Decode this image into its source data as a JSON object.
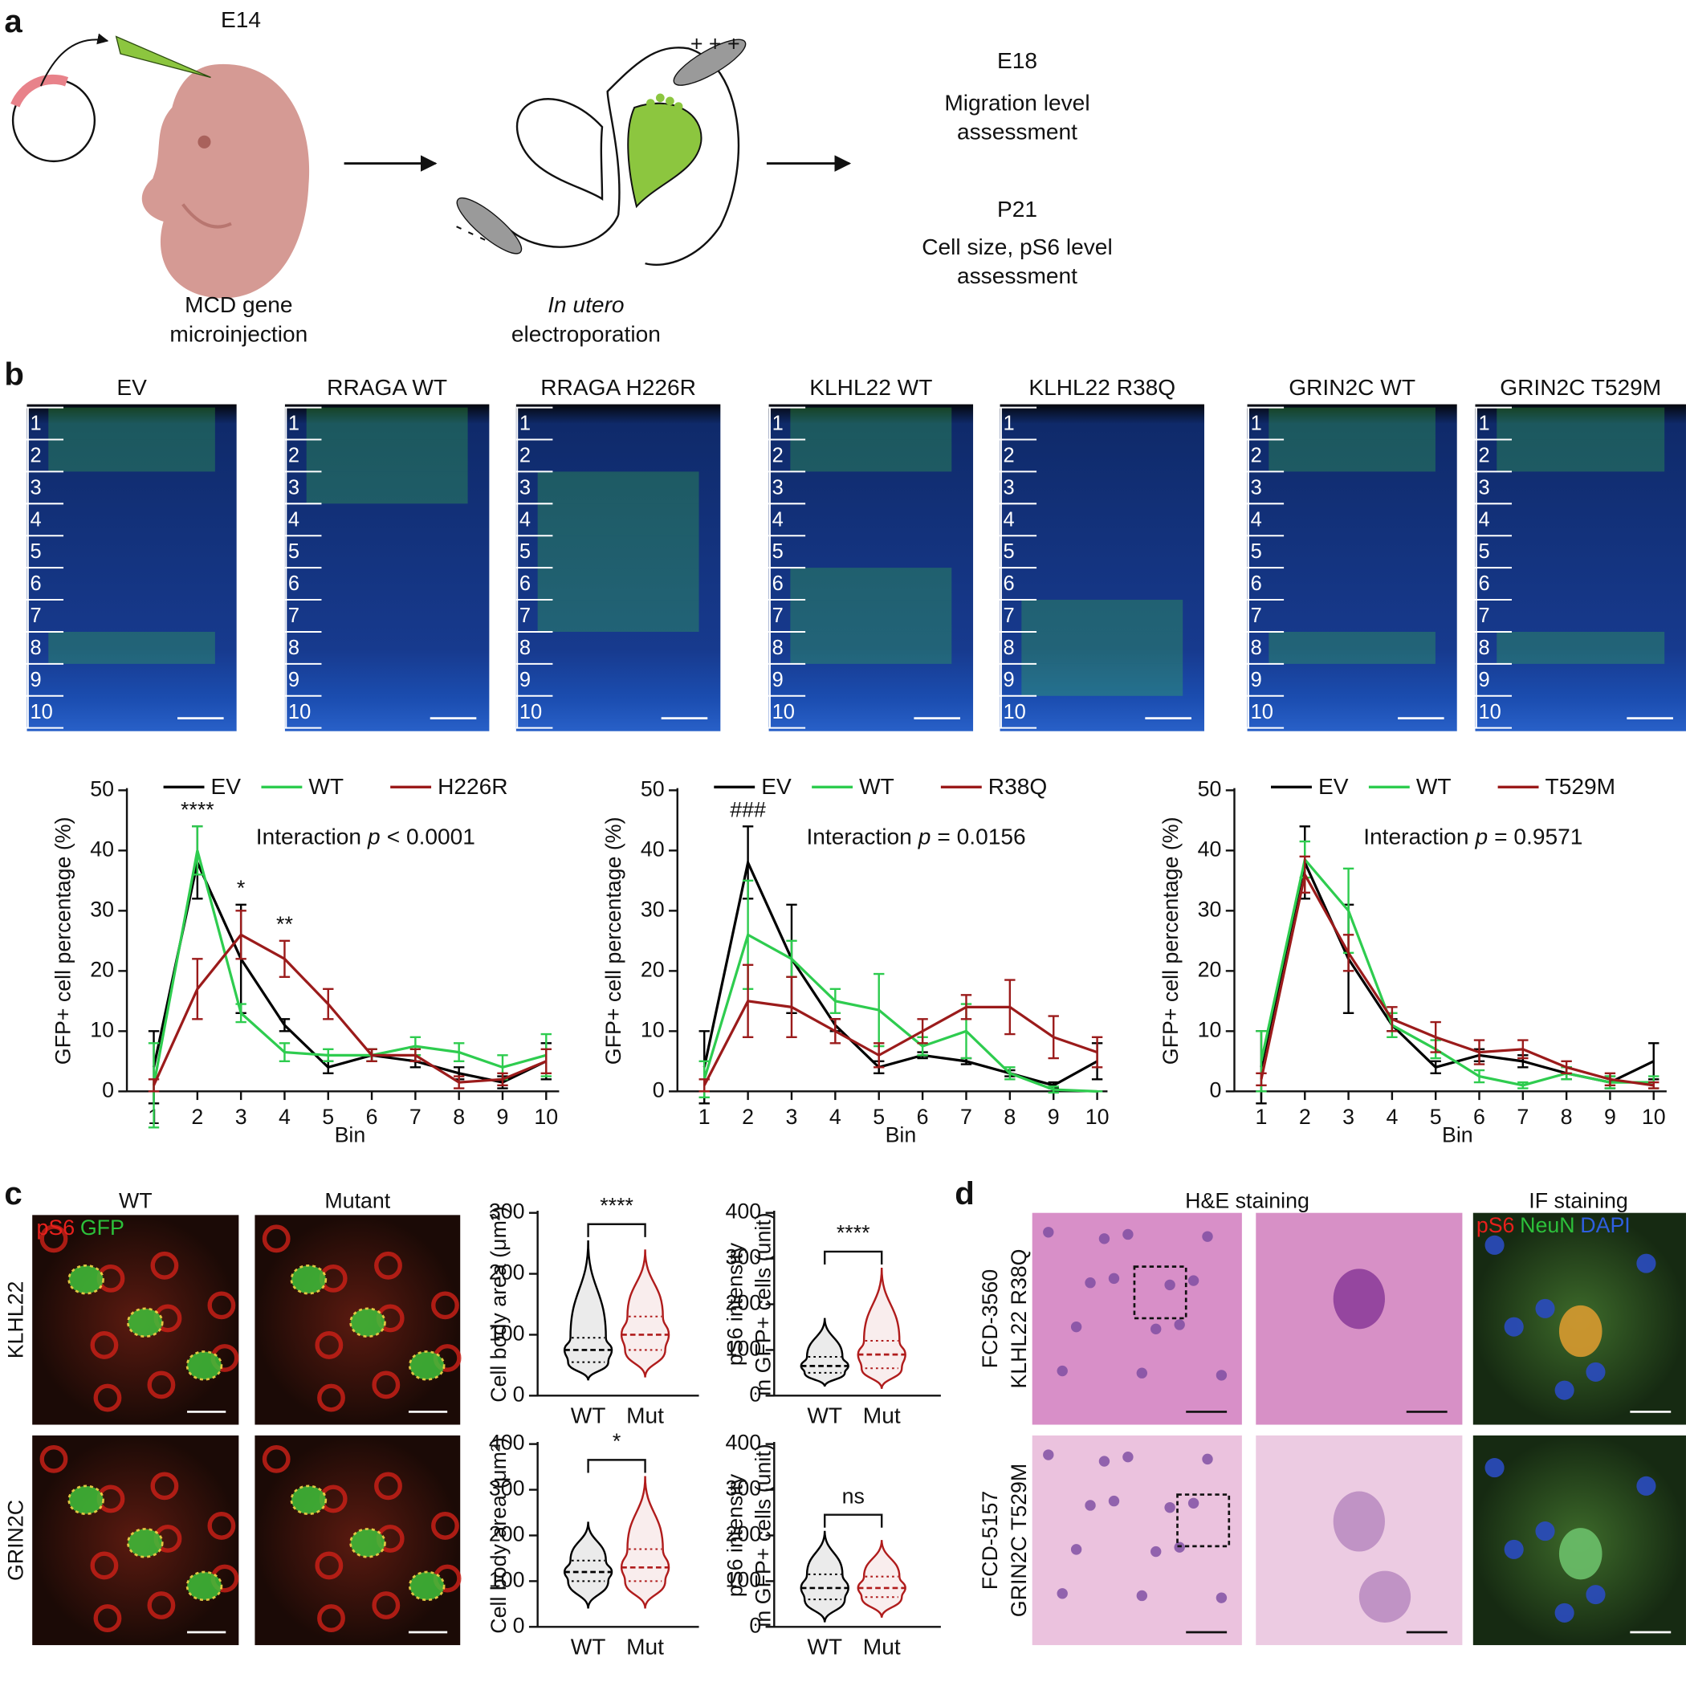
{
  "panel_labels": [
    "a",
    "b",
    "c",
    "d"
  ],
  "schematic": {
    "stage": "E14",
    "injection": [
      "MCD gene",
      "microinjection"
    ],
    "electroporation_italic": "In utero",
    "electroporation": "electroporation",
    "anode": "+ + +",
    "cathode": "- - -",
    "readout_1": {
      "stage": "E18",
      "lines": [
        "Migration level",
        "assessment"
      ]
    },
    "readout_2": {
      "stage": "P21",
      "lines": [
        "Cell size, pS6 level",
        "assessment"
      ]
    }
  },
  "sections": {
    "titles": [
      "EV",
      "RRAGA WT",
      "RRAGA H226R",
      "KLHL22 WT",
      "KLHL22 R38Q",
      "GRIN2C WT",
      "GRIN2C T529M"
    ],
    "bin_labels": [
      "1",
      "2",
      "3",
      "4",
      "5",
      "6",
      "7",
      "8",
      "9",
      "10"
    ]
  },
  "images_c": {
    "columns": [
      "WT",
      "Mutant"
    ],
    "rows": [
      "KLHL22",
      "GRIN2C"
    ],
    "stain_labels": [
      {
        "text": "pS6",
        "color": "#e8201c"
      },
      {
        "text": "GFP",
        "color": "#2cc03a"
      }
    ]
  },
  "images_d": {
    "columns": [
      "H&E staining",
      "IF staining"
    ],
    "rows": [
      [
        "FCD-3560",
        "KLHL22 R38Q"
      ],
      [
        "FCD-5157",
        "GRIN2C T529M"
      ]
    ],
    "stain_labels": [
      {
        "text": "pS6",
        "color": "#e8201c"
      },
      {
        "text": "NeuN",
        "color": "#2cc03a"
      },
      {
        "text": "DAPI",
        "color": "#2f5fe0"
      }
    ]
  },
  "chart_data": [
    {
      "type": "line",
      "xlabel": "Bin",
      "ylabel": "GFP+ cell percentage (%)",
      "categories": [
        "1",
        "2",
        "3",
        "4",
        "5",
        "6",
        "7",
        "8",
        "9",
        "10"
      ],
      "ylim": [
        0,
        50
      ],
      "yticks": [
        0,
        10,
        20,
        30,
        40,
        50
      ],
      "series": [
        {
          "name": "EV",
          "color": "#000000",
          "values": [
            4,
            38,
            22,
            11,
            4,
            6,
            5,
            3,
            1.5,
            5
          ],
          "errors": [
            6,
            6,
            9,
            1,
            1,
            1,
            1,
            1,
            1,
            3
          ]
        },
        {
          "name": "WT",
          "color": "#2ecc4f",
          "values": [
            1,
            40,
            13,
            6.5,
            6,
            6,
            7.5,
            6.5,
            4,
            6
          ],
          "errors": [
            7,
            4,
            1.5,
            1.5,
            1,
            1,
            1.5,
            1.5,
            2,
            3.5
          ]
        },
        {
          "name": "H226R",
          "color": "#9b1b1b",
          "values": [
            1,
            17,
            26,
            22,
            14.5,
            6,
            6,
            1.5,
            2,
            5
          ],
          "errors": [
            1,
            5,
            4,
            3,
            2.5,
            1,
            1,
            1,
            1,
            2
          ]
        }
      ],
      "annotation": {
        "prefix": "Interaction",
        "italic": "p",
        "suffix": "< 0.0001"
      },
      "significance": [
        {
          "text": "****",
          "x": "2"
        },
        {
          "text": "*",
          "x": "3"
        },
        {
          "text": "**",
          "x": "4"
        }
      ]
    },
    {
      "type": "line",
      "xlabel": "Bin",
      "ylabel": "GFP+ cell percentage (%)",
      "categories": [
        "1",
        "2",
        "3",
        "4",
        "5",
        "6",
        "7",
        "8",
        "9",
        "10"
      ],
      "ylim": [
        0,
        50
      ],
      "yticks": [
        0,
        10,
        20,
        30,
        40,
        50
      ],
      "series": [
        {
          "name": "EV",
          "color": "#000000",
          "values": [
            4,
            38,
            22,
            11,
            4,
            6,
            5,
            3,
            1,
            5
          ],
          "errors": [
            6,
            6,
            9,
            1,
            1,
            0.5,
            0.5,
            0.5,
            0.5,
            3
          ]
        },
        {
          "name": "WT",
          "color": "#2ecc4f",
          "values": [
            2,
            26,
            22,
            15,
            13.5,
            7.5,
            10,
            3,
            0.3,
            0
          ],
          "errors": [
            3,
            9,
            3,
            2,
            6,
            1.5,
            4.5,
            1,
            0.5,
            0
          ]
        },
        {
          "name": "R38Q",
          "color": "#9b1b1b",
          "values": [
            1,
            15,
            14,
            10,
            6,
            10,
            14,
            14,
            9,
            6.5
          ],
          "errors": [
            1,
            6,
            5,
            2,
            2,
            2,
            2,
            4.5,
            3.5,
            2.5
          ]
        }
      ],
      "annotation": {
        "prefix": "Interaction",
        "italic": "p",
        "suffix": "= 0.0156"
      },
      "significance": [
        {
          "text": "###",
          "x": "2"
        }
      ]
    },
    {
      "type": "line",
      "xlabel": "Bin",
      "ylabel": "GFP+ cell percentage (%)",
      "categories": [
        "1",
        "2",
        "3",
        "4",
        "5",
        "6",
        "7",
        "8",
        "9",
        "10"
      ],
      "ylim": [
        0,
        50
      ],
      "yticks": [
        0,
        10,
        20,
        30,
        40,
        50
      ],
      "series": [
        {
          "name": "EV",
          "color": "#000000",
          "values": [
            4,
            38,
            22,
            11,
            4,
            6,
            5,
            3,
            1.5,
            5
          ],
          "errors": [
            6,
            6,
            9,
            1,
            1,
            1,
            1,
            1,
            1,
            3
          ]
        },
        {
          "name": "WT",
          "color": "#2ecc4f",
          "values": [
            5,
            38.5,
            30,
            11,
            7,
            2.5,
            1,
            3,
            1.5,
            1.5
          ],
          "errors": [
            5,
            3,
            7,
            2,
            1.5,
            1,
            0.5,
            1,
            1,
            1
          ]
        },
        {
          "name": "T529M",
          "color": "#9b1b1b",
          "values": [
            2,
            36,
            23,
            12,
            9,
            6.5,
            7,
            4,
            2,
            1
          ],
          "errors": [
            1,
            3,
            3,
            2,
            2.5,
            2,
            1.5,
            1,
            1,
            0.5
          ]
        }
      ],
      "annotation": {
        "prefix": "Interaction",
        "italic": "p",
        "suffix": "= 0.9571"
      },
      "significance": []
    },
    {
      "type": "violin",
      "ylabel": [
        "Cell body area (μm²)"
      ],
      "categories": [
        "WT",
        "Mut"
      ],
      "ylim": [
        0,
        300
      ],
      "yticks": [
        0,
        100,
        200,
        300
      ],
      "groups": [
        {
          "color": "#000000",
          "min": 25,
          "q1": 55,
          "median": 75,
          "q3": 95,
          "max": 255
        },
        {
          "color": "#b01c1c",
          "min": 30,
          "q1": 75,
          "median": 100,
          "q3": 130,
          "max": 240
        }
      ],
      "significance": "****"
    },
    {
      "type": "violin",
      "ylabel": [
        "pS6 intensity",
        "in GFP+ cells (unit)"
      ],
      "categories": [
        "WT",
        "Mut"
      ],
      "ylim": [
        0,
        400
      ],
      "yticks": [
        0,
        100,
        200,
        300,
        400
      ],
      "groups": [
        {
          "color": "#000000",
          "min": 20,
          "q1": 50,
          "median": 65,
          "q3": 85,
          "max": 170
        },
        {
          "color": "#b01c1c",
          "min": 15,
          "q1": 60,
          "median": 90,
          "q3": 120,
          "max": 280
        }
      ],
      "significance": "****"
    },
    {
      "type": "violin",
      "ylabel": [
        "Cell body area (μm²)"
      ],
      "categories": [
        "WT",
        "Mut"
      ],
      "ylim": [
        0,
        400
      ],
      "yticks": [
        0,
        100,
        200,
        300,
        400
      ],
      "groups": [
        {
          "color": "#000000",
          "min": 40,
          "q1": 100,
          "median": 120,
          "q3": 145,
          "max": 230
        },
        {
          "color": "#b01c1c",
          "min": 40,
          "q1": 100,
          "median": 130,
          "q3": 170,
          "max": 330
        }
      ],
      "significance": "*"
    },
    {
      "type": "violin",
      "ylabel": [
        "pS6 intensity",
        "in GFP+ cells (unit)"
      ],
      "categories": [
        "WT",
        "Mut"
      ],
      "ylim": [
        0,
        400
      ],
      "yticks": [
        0,
        100,
        200,
        300,
        400
      ],
      "groups": [
        {
          "color": "#000000",
          "min": 10,
          "q1": 60,
          "median": 85,
          "q3": 115,
          "max": 210
        },
        {
          "color": "#b01c1c",
          "min": 20,
          "q1": 65,
          "median": 85,
          "q3": 110,
          "max": 190
        }
      ],
      "significance": "ns"
    }
  ]
}
